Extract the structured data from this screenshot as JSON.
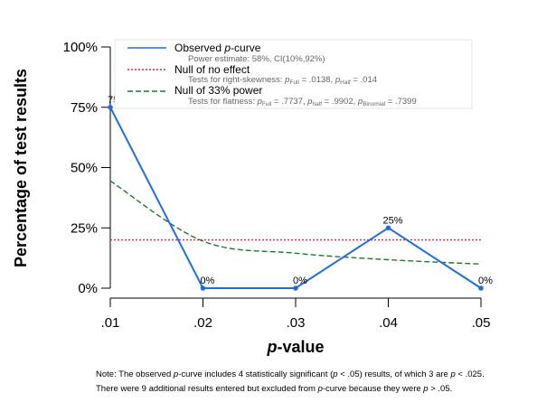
{
  "chart_data": {
    "type": "line",
    "x": [
      0.01,
      0.02,
      0.03,
      0.04,
      0.05
    ],
    "x_tick_labels": [
      ".01",
      ".02",
      ".03",
      ".04",
      ".05"
    ],
    "y_tick_labels": [
      "0%",
      "25%",
      "50%",
      "75%",
      "100%"
    ],
    "ylim": [
      0,
      100
    ],
    "xlabel_italic": "p",
    "xlabel_rest": "-value",
    "ylabel": "Percentage of test results",
    "grid": false,
    "legend_position": "top",
    "series": [
      {
        "name": "Observed p-curve",
        "style": "solid",
        "color": "#1f6fdb",
        "values": [
          75,
          0,
          0,
          25,
          0
        ],
        "point_labels": [
          "75%",
          "0%",
          "0%",
          "25%",
          "0%"
        ]
      },
      {
        "name": "Null of no effect",
        "style": "dotted",
        "color": "#e8263c",
        "values": [
          20,
          20,
          20,
          20,
          20
        ]
      },
      {
        "name": "Null of 33% power",
        "style": "dashed",
        "color": "#1f7a2e",
        "values": [
          44.5,
          19.5,
          14.5,
          11.8,
          10
        ]
      }
    ],
    "legend": {
      "observed_prefix": "Observed ",
      "observed_italic": "p",
      "observed_suffix": "-curve",
      "observed_sub": "Power estimate: 58%, CI(10%,92%)",
      "null_label": "Null of no effect",
      "null_sub_prefix": "Tests for right-skewness: ",
      "null_sub_p": "p",
      "null_sub_full": "Full",
      "null_sub_full_val": " = .0138,  ",
      "null_sub_half": "Half",
      "null_sub_half_val": " = .014",
      "power_label": "Null of 33% power",
      "power_sub_prefix": "Tests for flatness: ",
      "power_sub_full": "Full",
      "power_sub_full_val": " = .7737,  ",
      "power_sub_half": "half",
      "power_sub_half_val": " = .9902,  ",
      "power_sub_binom": "Binomial",
      "power_sub_binom_val": " = .7399"
    }
  },
  "note": {
    "line1_a": "Note: The observed ",
    "line1_p": "p",
    "line1_b": "-curve includes 4 statistically significant (",
    "line1_p2": "p",
    "line1_c": " < .05) results, of which 3 are ",
    "line1_p3": "p",
    "line1_d": " < .025.",
    "line2_a": "There were 9 additional results entered but excluded from ",
    "line2_p": "p",
    "line2_b": "-curve because they were ",
    "line2_p2": "p",
    "line2_c": " > .05."
  }
}
